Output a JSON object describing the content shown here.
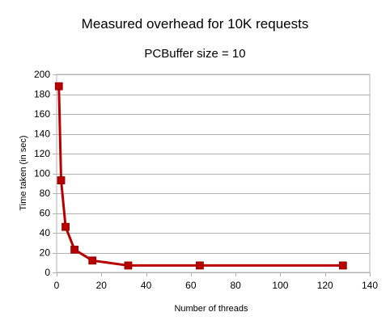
{
  "chart_data": {
    "type": "line",
    "title": "Measured overhead for 10K requests",
    "subtitle": "PCBuffer size = 10",
    "xlabel": "Number of threads",
    "ylabel": "Time taken (in sec)",
    "xlim": [
      0,
      140
    ],
    "ylim": [
      0,
      200
    ],
    "xticks": [
      0,
      20,
      40,
      60,
      80,
      100,
      120,
      140
    ],
    "yticks": [
      0,
      20,
      40,
      60,
      80,
      100,
      120,
      140,
      160,
      180,
      200
    ],
    "grid": "horizontal",
    "legend": "none",
    "series": [
      {
        "color": "#b80000",
        "marker": "square",
        "x": [
          1,
          2,
          4,
          8,
          16,
          32,
          64,
          128
        ],
        "y": [
          188,
          93,
          46,
          23,
          12,
          7,
          7,
          7
        ]
      }
    ]
  }
}
